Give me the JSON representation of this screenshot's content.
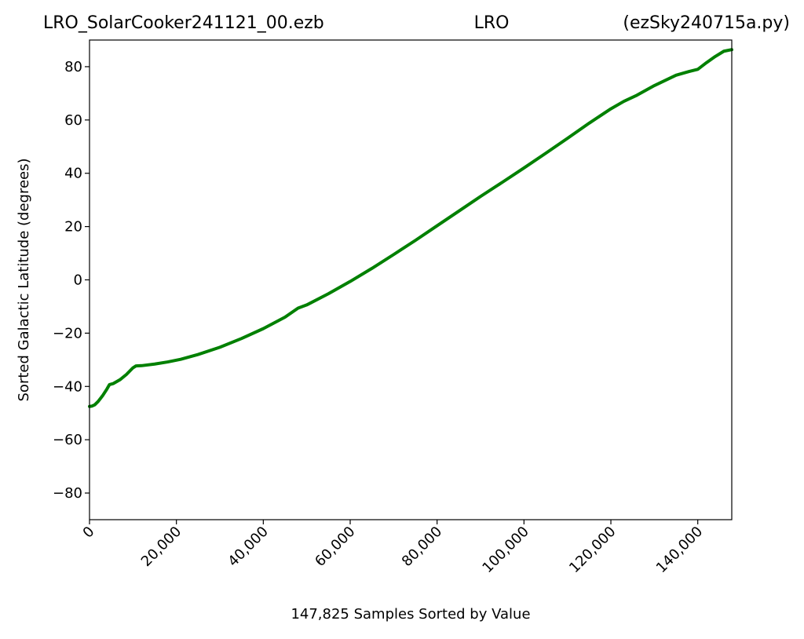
{
  "chart_data": {
    "type": "line",
    "title_left": "LRO_SolarCooker241121_00.ezb",
    "title_center": "LRO",
    "title_right": "(ezSky240715a.py)",
    "xlabel": "147,825 Samples Sorted by Value",
    "ylabel": "Sorted Galactic Latitude (degrees)",
    "xlim": [
      0,
      147825
    ],
    "ylim": [
      -90,
      90
    ],
    "x_ticks": [
      0,
      20000,
      40000,
      60000,
      80000,
      100000,
      120000,
      140000
    ],
    "x_tick_labels": [
      "0",
      "20,000",
      "40,000",
      "60,000",
      "80,000",
      "100,000",
      "120,000",
      "140,000"
    ],
    "y_ticks": [
      -80,
      -60,
      -40,
      -20,
      0,
      20,
      40,
      60,
      80
    ],
    "y_tick_labels": [
      "−80",
      "−60",
      "−40",
      "−20",
      "0",
      "20",
      "40",
      "60",
      "80"
    ],
    "grid": false,
    "color": "#008000",
    "series": [
      {
        "x": [
          0,
          500,
          1200,
          2000,
          3000,
          4000,
          4600,
          5500,
          7000,
          8500,
          10000,
          10700,
          12000,
          15000,
          18000,
          21000,
          25000,
          30000,
          35000,
          40000,
          45000,
          48000,
          50000,
          55000,
          60000,
          65000,
          70000,
          75000,
          80000,
          85000,
          90000,
          95000,
          100000,
          105000,
          110000,
          115000,
          120000,
          123000,
          126000,
          130000,
          135000,
          138000,
          140000,
          142000,
          144000,
          146000,
          147825
        ],
        "y": [
          -47.5,
          -47.4,
          -46.9,
          -45.6,
          -43.5,
          -41.0,
          -39.3,
          -38.9,
          -37.5,
          -35.5,
          -33.0,
          -32.3,
          -32.2,
          -31.6,
          -30.8,
          -29.8,
          -28.0,
          -25.3,
          -22.0,
          -18.3,
          -14.0,
          -10.6,
          -9.4,
          -5.2,
          -0.6,
          4.3,
          9.5,
          14.8,
          20.3,
          25.8,
          31.3,
          36.6,
          42.0,
          47.5,
          53.1,
          58.8,
          64.2,
          67.0,
          69.3,
          72.9,
          76.8,
          78.2,
          79.0,
          81.5,
          83.8,
          85.8,
          86.4
        ]
      }
    ]
  }
}
